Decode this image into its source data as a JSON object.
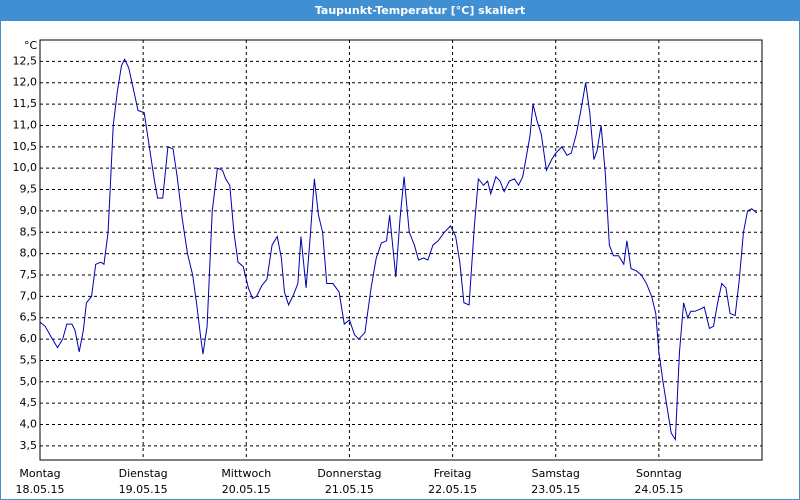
{
  "chart_data": {
    "type": "line",
    "title": "Taupunkt-Temperatur [°C] skaliert",
    "unit": "°C",
    "x": [
      0,
      0.05,
      0.12,
      0.17,
      0.22,
      0.26,
      0.31,
      0.34,
      0.38,
      0.42,
      0.45,
      0.5,
      0.54,
      0.59,
      0.62,
      0.66,
      0.71,
      0.75,
      0.79,
      0.82,
      0.86,
      0.91,
      0.95,
      1.01,
      1.06,
      1.11,
      1.14,
      1.19,
      1.24,
      1.29,
      1.33,
      1.38,
      1.43,
      1.48,
      1.52,
      1.56,
      1.58,
      1.62,
      1.67,
      1.72,
      1.77,
      1.8,
      1.84,
      1.88,
      1.92,
      1.97,
      2.02,
      2.06,
      2.1,
      2.15,
      2.2,
      2.25,
      2.3,
      2.34,
      2.37,
      2.41,
      2.46,
      2.5,
      2.53,
      2.58,
      2.62,
      2.66,
      2.7,
      2.74,
      2.78,
      2.84,
      2.9,
      2.95,
      3,
      3.05,
      3.09,
      3.15,
      3.21,
      3.26,
      3.31,
      3.36,
      3.39,
      3.45,
      3.49,
      3.53,
      3.58,
      3.63,
      3.67,
      3.72,
      3.76,
      3.81,
      3.86,
      3.92,
      3.98,
      4.03,
      4.07,
      4.11,
      4.16,
      4.21,
      4.25,
      4.3,
      4.34,
      4.37,
      4.42,
      4.46,
      4.5,
      4.55,
      4.6,
      4.64,
      4.68,
      4.71,
      4.75,
      4.78,
      4.82,
      4.86,
      4.91,
      4.96,
      5,
      5.06,
      5.11,
      5.15,
      5.2,
      5.24,
      5.29,
      5.33,
      5.37,
      5.4,
      5.44,
      5.48,
      5.52,
      5.56,
      5.61,
      5.66,
      5.69,
      5.73,
      5.78,
      5.83,
      5.88,
      5.93,
      5.97,
      6,
      6.04,
      6.08,
      6.12,
      6.16,
      6.2,
      6.24,
      6.28,
      6.31,
      6.35,
      6.4,
      6.44,
      6.49,
      6.53,
      6.57,
      6.61,
      6.65,
      6.69,
      6.74,
      6.78,
      6.82,
      6.86,
      6.9,
      6.95
    ],
    "values": [
      6.4,
      6.3,
      6.0,
      5.8,
      6.0,
      6.35,
      6.35,
      6.2,
      5.7,
      6.2,
      6.85,
      7.0,
      7.75,
      7.8,
      7.75,
      8.5,
      11.0,
      11.8,
      12.4,
      12.55,
      12.35,
      11.8,
      11.35,
      11.3,
      10.5,
      9.7,
      9.3,
      9.3,
      10.5,
      10.45,
      9.8,
      8.8,
      8.0,
      7.5,
      6.8,
      6.0,
      5.65,
      6.3,
      9.0,
      10.0,
      9.95,
      9.75,
      9.6,
      8.5,
      7.8,
      7.7,
      7.2,
      6.95,
      7.0,
      7.25,
      7.4,
      8.2,
      8.4,
      7.9,
      7.1,
      6.8,
      7.05,
      7.3,
      8.4,
      7.2,
      8.4,
      9.75,
      8.9,
      8.5,
      7.3,
      7.3,
      7.1,
      6.35,
      6.45,
      6.1,
      6.0,
      6.15,
      7.2,
      7.9,
      8.25,
      8.3,
      8.9,
      7.45,
      8.8,
      9.8,
      8.5,
      8.2,
      7.85,
      7.9,
      7.85,
      8.2,
      8.3,
      8.5,
      8.65,
      8.4,
      7.8,
      6.85,
      6.8,
      8.6,
      9.75,
      9.6,
      9.7,
      9.4,
      9.8,
      9.7,
      9.45,
      9.7,
      9.75,
      9.6,
      9.8,
      10.2,
      10.75,
      11.5,
      11.1,
      10.8,
      9.95,
      10.2,
      10.35,
      10.5,
      10.3,
      10.35,
      10.8,
      11.3,
      12.0,
      11.3,
      10.2,
      10.4,
      11.0,
      9.9,
      8.2,
      7.95,
      7.95,
      7.75,
      8.3,
      7.65,
      7.6,
      7.5,
      7.3,
      7.0,
      6.6,
      5.7,
      5.0,
      4.4,
      3.8,
      3.65,
      5.7,
      6.85,
      6.5,
      6.65,
      6.65,
      6.7,
      6.75,
      6.25,
      6.3,
      6.85,
      7.3,
      7.2,
      6.6,
      6.55,
      7.4,
      8.5,
      9.0,
      9.05,
      8.95
    ],
    "color": "#0000b0",
    "xlim": [
      0,
      7
    ],
    "xticks": [
      {
        "value": 0,
        "label": "Montag",
        "date": "18.05.15"
      },
      {
        "value": 1,
        "label": "Dienstag",
        "date": "19.05.15"
      },
      {
        "value": 2,
        "label": "Mittwoch",
        "date": "20.05.15"
      },
      {
        "value": 3,
        "label": "Donnerstag",
        "date": "21.05.15"
      },
      {
        "value": 4,
        "label": "Freitag",
        "date": "22.05.15"
      },
      {
        "value": 5,
        "label": "Samstag",
        "date": "23.05.15"
      },
      {
        "value": 6,
        "label": "Sonntag",
        "date": "24.05.15"
      }
    ],
    "ylim": [
      3.17,
      13.0
    ],
    "yticks": [
      {
        "value": 3.5,
        "label": "3,5"
      },
      {
        "value": 4,
        "label": "4,0"
      },
      {
        "value": 4.5,
        "label": "4,5"
      },
      {
        "value": 5,
        "label": "5,0"
      },
      {
        "value": 5.5,
        "label": "5,5"
      },
      {
        "value": 6,
        "label": "6,0"
      },
      {
        "value": 6.5,
        "label": "6,5"
      },
      {
        "value": 7,
        "label": "7,0"
      },
      {
        "value": 7.5,
        "label": "7,5"
      },
      {
        "value": 8,
        "label": "8,0"
      },
      {
        "value": 8.5,
        "label": "8,5"
      },
      {
        "value": 9,
        "label": "9,0"
      },
      {
        "value": 9.5,
        "label": "9,5"
      },
      {
        "value": 10,
        "label": "10,0"
      },
      {
        "value": 10.5,
        "label": "10,5"
      },
      {
        "value": 11,
        "label": "11,0"
      },
      {
        "value": 11.5,
        "label": "11,5"
      },
      {
        "value": 12,
        "label": "12,0"
      },
      {
        "value": 12.5,
        "label": "12,5"
      }
    ],
    "grid": true
  }
}
